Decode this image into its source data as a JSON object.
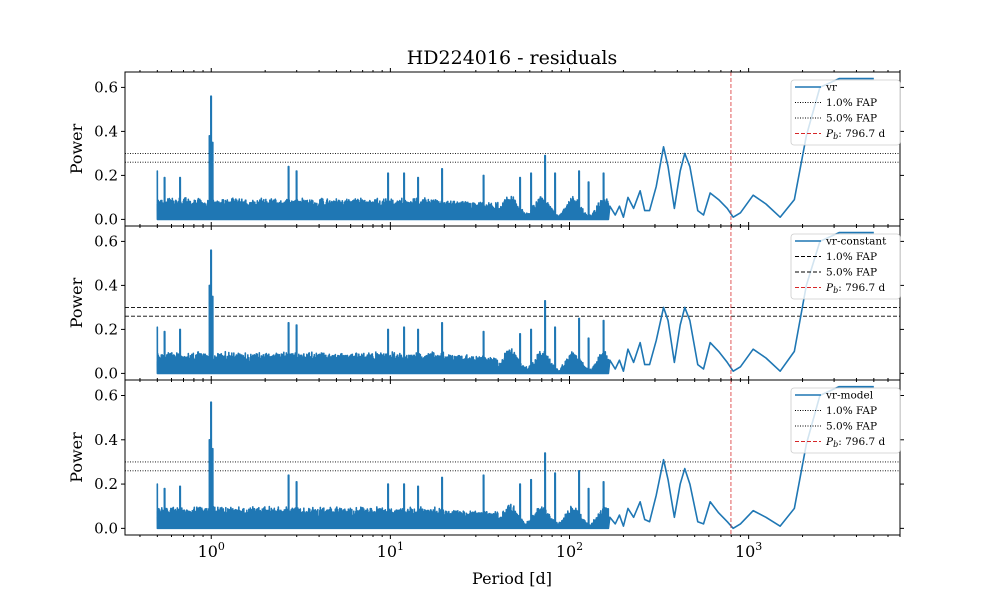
{
  "chart_data": {
    "type": "line",
    "title": "HD224016 - residuals",
    "xlabel": "Period [d]",
    "x_scale": "log",
    "xlim": [
      0.33,
      7000
    ],
    "x_ticks": [
      1,
      10,
      100,
      1000
    ],
    "x_tick_labels": [
      {
        "base": "10",
        "exp": "0"
      },
      {
        "base": "10",
        "exp": "1"
      },
      {
        "base": "10",
        "exp": "2"
      },
      {
        "base": "10",
        "exp": "3"
      }
    ],
    "line_color": "#1f77b4",
    "marker_color": "#d62728",
    "panels": [
      {
        "ylabel": "Power",
        "ylim": [
          -0.03,
          0.67
        ],
        "y_ticks": [
          0.0,
          0.2,
          0.4,
          0.6
        ],
        "y_tick_labels": [
          "0.0",
          "0.2",
          "0.4",
          "0.6"
        ],
        "series_name": "vr",
        "fap_style": "dotted",
        "fap": [
          {
            "label": "1.0% FAP",
            "value": 0.3
          },
          {
            "label": "5.0% FAP",
            "value": 0.26
          }
        ],
        "marker_label": "796.7 d",
        "marker_period": 796.7,
        "base_amplitude": 0.1,
        "spikes": [
          [
            1.0,
            0.56
          ],
          [
            0.98,
            0.38
          ],
          [
            1.02,
            0.35
          ],
          [
            0.5,
            0.22
          ],
          [
            0.55,
            0.19
          ],
          [
            0.67,
            0.19
          ],
          [
            2.7,
            0.24
          ],
          [
            3.0,
            0.22
          ],
          [
            9.7,
            0.21
          ],
          [
            11.9,
            0.21
          ],
          [
            14.3,
            0.19
          ],
          [
            19.5,
            0.23
          ],
          [
            33.2,
            0.2
          ],
          [
            73.0,
            0.29
          ],
          [
            53.0,
            0.19
          ],
          [
            61.0,
            0.21
          ],
          [
            83.0,
            0.21
          ],
          [
            113.0,
            0.22
          ],
          [
            128.0,
            0.17
          ],
          [
            155.0,
            0.21
          ]
        ],
        "curve": [
          [
            168,
            0.06
          ],
          [
            180,
            0.02
          ],
          [
            190,
            0.06
          ],
          [
            200,
            0.01
          ],
          [
            212,
            0.1
          ],
          [
            228,
            0.05
          ],
          [
            248,
            0.13
          ],
          [
            263,
            0.04
          ],
          [
            280,
            0.04
          ],
          [
            305,
            0.15
          ],
          [
            335,
            0.33
          ],
          [
            355,
            0.24
          ],
          [
            385,
            0.05
          ],
          [
            415,
            0.22
          ],
          [
            440,
            0.3
          ],
          [
            470,
            0.24
          ],
          [
            520,
            0.04
          ],
          [
            560,
            0.02
          ],
          [
            610,
            0.12
          ],
          [
            680,
            0.09
          ],
          [
            760,
            0.05
          ],
          [
            820,
            0.01
          ],
          [
            900,
            0.03
          ],
          [
            1060,
            0.11
          ],
          [
            1250,
            0.07
          ],
          [
            1500,
            0.01
          ],
          [
            1800,
            0.09
          ],
          [
            2100,
            0.38
          ],
          [
            2500,
            0.6
          ],
          [
            3200,
            0.64
          ],
          [
            5000,
            0.64
          ]
        ]
      },
      {
        "ylabel": "Power",
        "ylim": [
          -0.03,
          0.67
        ],
        "y_ticks": [
          0.0,
          0.2,
          0.4,
          0.6
        ],
        "y_tick_labels": [
          "0.0",
          "0.2",
          "0.4",
          "0.6"
        ],
        "series_name": "vr-constant",
        "fap_style": "dashed",
        "fap": [
          {
            "label": "1.0% FAP",
            "value": 0.3
          },
          {
            "label": "5.0% FAP",
            "value": 0.26
          }
        ],
        "marker_label": "796.7 d",
        "marker_period": 796.7,
        "base_amplitude": 0.1,
        "spikes": [
          [
            1.0,
            0.56
          ],
          [
            0.98,
            0.4
          ],
          [
            1.02,
            0.35
          ],
          [
            0.5,
            0.21
          ],
          [
            0.55,
            0.19
          ],
          [
            0.67,
            0.2
          ],
          [
            2.7,
            0.23
          ],
          [
            3.0,
            0.22
          ],
          [
            9.7,
            0.2
          ],
          [
            11.9,
            0.21
          ],
          [
            14.3,
            0.2
          ],
          [
            19.5,
            0.23
          ],
          [
            33.2,
            0.19
          ],
          [
            73.0,
            0.33
          ],
          [
            53.0,
            0.18
          ],
          [
            61.0,
            0.2
          ],
          [
            83.0,
            0.21
          ],
          [
            113.0,
            0.25
          ],
          [
            128.0,
            0.16
          ],
          [
            155.0,
            0.24
          ]
        ],
        "curve": [
          [
            168,
            0.06
          ],
          [
            180,
            0.02
          ],
          [
            190,
            0.06
          ],
          [
            200,
            0.01
          ],
          [
            212,
            0.11
          ],
          [
            228,
            0.05
          ],
          [
            248,
            0.14
          ],
          [
            263,
            0.04
          ],
          [
            280,
            0.04
          ],
          [
            305,
            0.15
          ],
          [
            335,
            0.3
          ],
          [
            355,
            0.24
          ],
          [
            385,
            0.05
          ],
          [
            415,
            0.22
          ],
          [
            440,
            0.3
          ],
          [
            470,
            0.24
          ],
          [
            520,
            0.04
          ],
          [
            560,
            0.02
          ],
          [
            610,
            0.14
          ],
          [
            680,
            0.1
          ],
          [
            760,
            0.05
          ],
          [
            820,
            0.01
          ],
          [
            900,
            0.03
          ],
          [
            1060,
            0.11
          ],
          [
            1250,
            0.07
          ],
          [
            1500,
            0.01
          ],
          [
            1800,
            0.1
          ],
          [
            2100,
            0.4
          ],
          [
            2500,
            0.6
          ],
          [
            3200,
            0.64
          ],
          [
            5000,
            0.64
          ]
        ]
      },
      {
        "ylabel": "Power",
        "ylim": [
          -0.03,
          0.67
        ],
        "y_ticks": [
          0.0,
          0.2,
          0.4,
          0.6
        ],
        "y_tick_labels": [
          "0.0",
          "0.2",
          "0.4",
          "0.6"
        ],
        "series_name": "vr-model",
        "fap_style": "dotted",
        "fap": [
          {
            "label": "1.0% FAP",
            "value": 0.3
          },
          {
            "label": "5.0% FAP",
            "value": 0.26
          }
        ],
        "marker_label": "796.7 d",
        "marker_period": 796.7,
        "base_amplitude": 0.1,
        "spikes": [
          [
            1.0,
            0.57
          ],
          [
            0.98,
            0.4
          ],
          [
            1.02,
            0.36
          ],
          [
            0.5,
            0.2
          ],
          [
            0.55,
            0.18
          ],
          [
            0.67,
            0.19
          ],
          [
            2.7,
            0.24
          ],
          [
            3.0,
            0.21
          ],
          [
            9.7,
            0.2
          ],
          [
            11.9,
            0.2
          ],
          [
            14.3,
            0.19
          ],
          [
            19.5,
            0.23
          ],
          [
            33.2,
            0.24
          ],
          [
            73.0,
            0.34
          ],
          [
            53.0,
            0.2
          ],
          [
            61.0,
            0.22
          ],
          [
            83.0,
            0.25
          ],
          [
            113.0,
            0.26
          ],
          [
            128.0,
            0.18
          ],
          [
            155.0,
            0.21
          ]
        ],
        "curve": [
          [
            168,
            0.05
          ],
          [
            180,
            0.02
          ],
          [
            190,
            0.06
          ],
          [
            200,
            0.01
          ],
          [
            212,
            0.09
          ],
          [
            228,
            0.05
          ],
          [
            248,
            0.12
          ],
          [
            263,
            0.04
          ],
          [
            280,
            0.03
          ],
          [
            305,
            0.15
          ],
          [
            335,
            0.31
          ],
          [
            355,
            0.22
          ],
          [
            385,
            0.05
          ],
          [
            415,
            0.2
          ],
          [
            440,
            0.27
          ],
          [
            470,
            0.2
          ],
          [
            520,
            0.03
          ],
          [
            560,
            0.02
          ],
          [
            610,
            0.12
          ],
          [
            680,
            0.07
          ],
          [
            760,
            0.03
          ],
          [
            820,
            0.0
          ],
          [
            900,
            0.02
          ],
          [
            1060,
            0.08
          ],
          [
            1250,
            0.05
          ],
          [
            1500,
            0.01
          ],
          [
            1800,
            0.09
          ],
          [
            2100,
            0.38
          ],
          [
            2500,
            0.6
          ],
          [
            3200,
            0.64
          ],
          [
            5000,
            0.64
          ]
        ]
      }
    ]
  }
}
